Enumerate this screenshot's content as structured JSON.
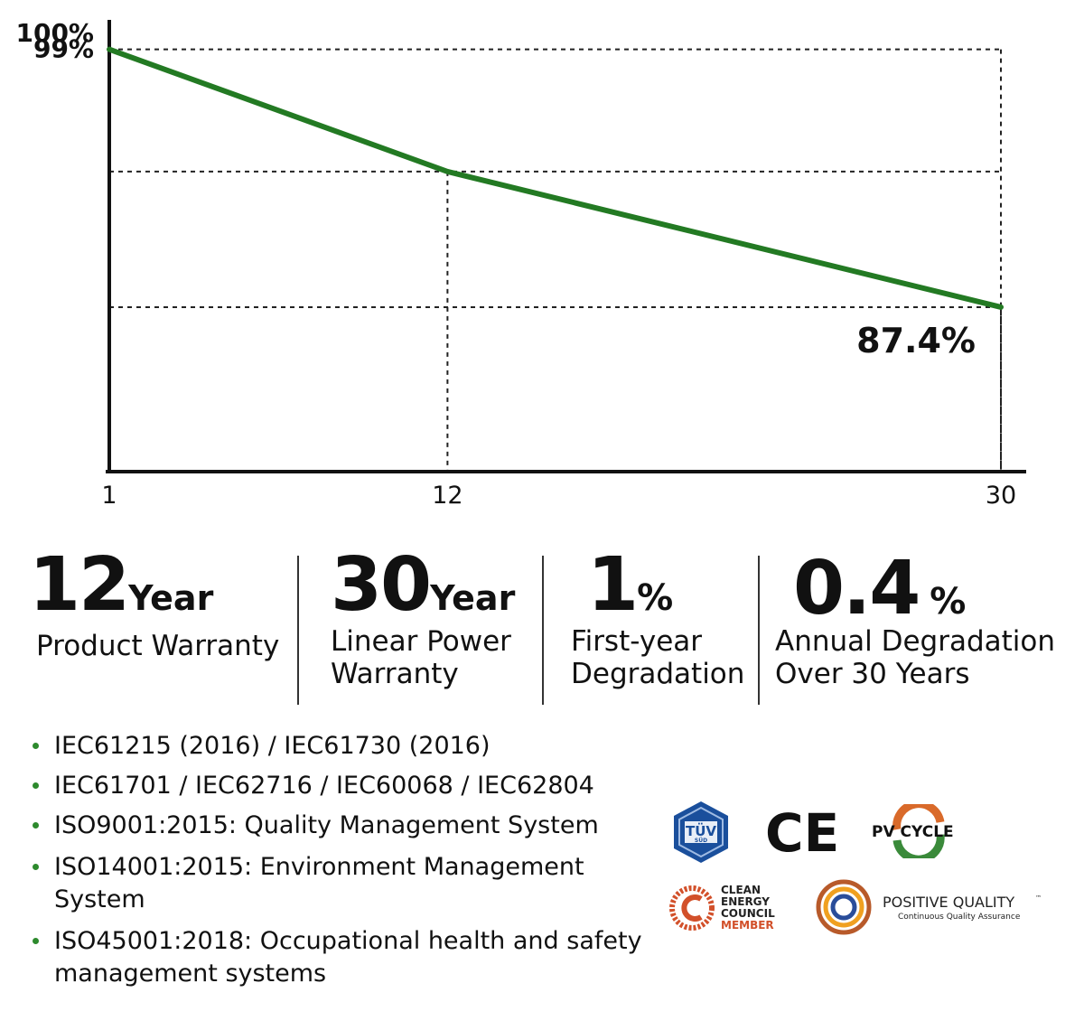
{
  "chart_data": {
    "type": "line",
    "x": [
      1,
      12,
      30
    ],
    "y": [
      99,
      93.5,
      87.4
    ],
    "xticks": [
      "1",
      "12",
      "30"
    ],
    "yticks": [
      "100%",
      "99%"
    ],
    "end_label": "87.4%",
    "xlim": [
      1,
      30
    ],
    "ylim": [
      80,
      100
    ],
    "grid": false,
    "reference_lines": "dashed guides from each data point to both axes",
    "line_color": "#237a23"
  },
  "stats": [
    {
      "number": "12",
      "unit": "Year",
      "desc": "Product Warranty"
    },
    {
      "number": "30",
      "unit": "Year",
      "desc": "Linear Power\nWarranty"
    },
    {
      "number": "1",
      "unit": "%",
      "desc": "First-year\nDegradation"
    },
    {
      "number": "0.4",
      "unit": "%",
      "desc": "Annual Degradation\nOver 30 Years"
    }
  ],
  "certifications": [
    "IEC61215 (2016) / IEC61730 (2016)",
    "IEC61701 / IEC62716 / IEC60068 / IEC62804",
    "ISO9001:2015: Quality Management System",
    "ISO14001:2015: Environment Management System",
    "ISO45001:2018: Occupational health and safety management systems"
  ],
  "logos": {
    "tuv": {
      "name": "tuv-sud-logo",
      "text": "TÜV",
      "sub": "SÜD"
    },
    "ce": {
      "name": "ce-mark",
      "text": "CE"
    },
    "pvcycle": {
      "name": "pv-cycle-logo",
      "text": "PV CYCLE"
    },
    "cec": {
      "name": "clean-energy-council-logo",
      "lines": [
        "CLEAN",
        "ENERGY",
        "COUNCIL",
        "MEMBER"
      ]
    },
    "pq": {
      "name": "positive-quality-logo",
      "title": "POSITIVE QUALITY",
      "tm": "™",
      "subtitle": "Continuous Quality Assurance"
    }
  },
  "colors": {
    "accent_green": "#237a23",
    "bullet_green": "#2d8a2d",
    "cec_orange": "#d2502a",
    "tuv_blue": "#1a4f9c"
  }
}
